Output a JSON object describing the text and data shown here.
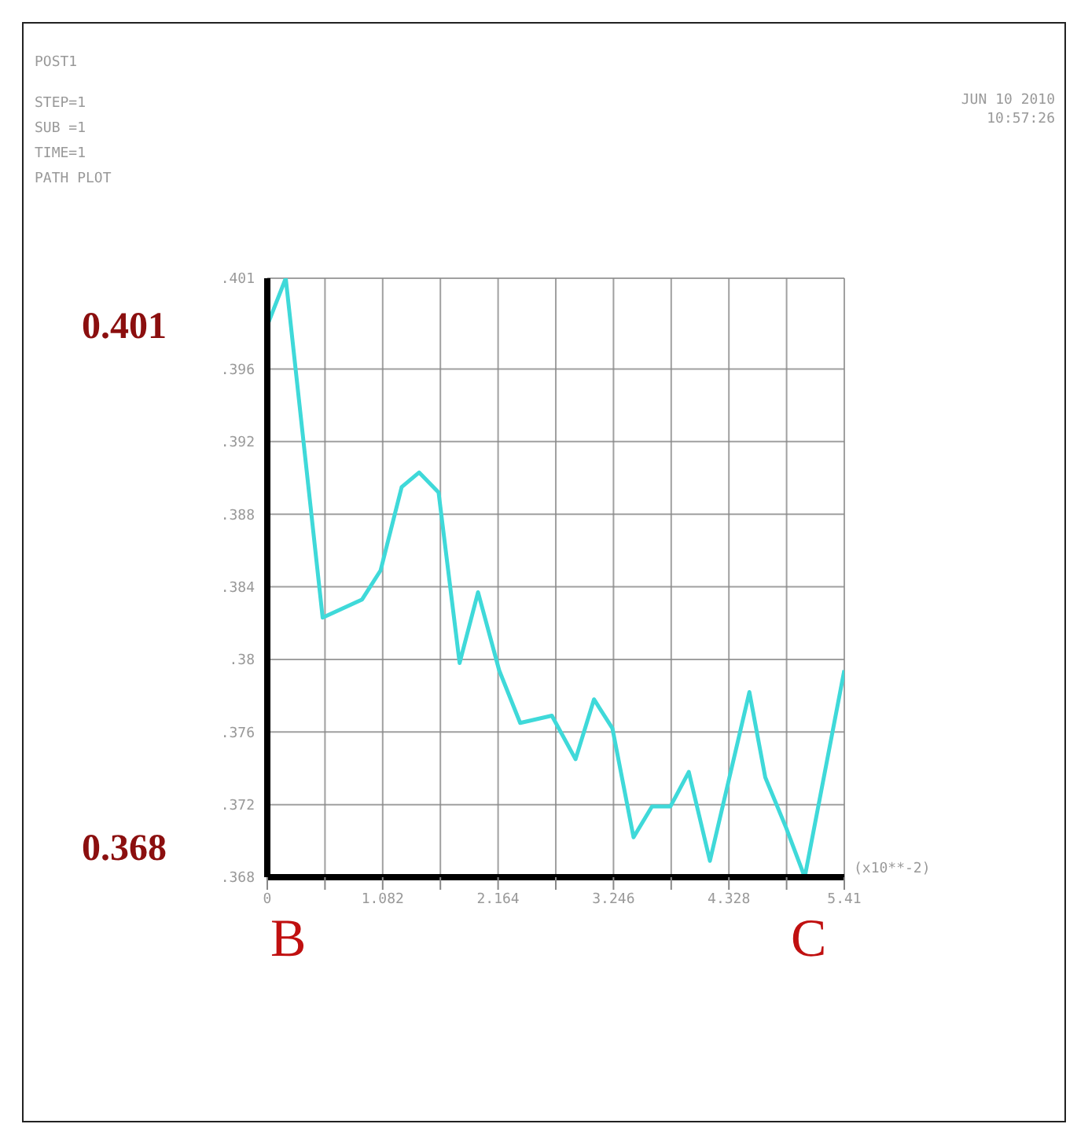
{
  "chart_data": {
    "type": "line",
    "xlabel": "(x10**-2)",
    "x": [
      0,
      0.173,
      0.519,
      0.889,
      1.062,
      1.26,
      1.423,
      1.606,
      1.803,
      1.976,
      2.174,
      2.371,
      2.668,
      2.89,
      3.063,
      3.236,
      3.434,
      3.607,
      3.78,
      3.952,
      4.15,
      4.52,
      4.669,
      4.866,
      5.039,
      5.41
    ],
    "series": [
      {
        "color": "#3fd9d9",
        "values": [
          0.3984,
          0.401,
          0.3823,
          0.3833,
          0.3849,
          0.3895,
          0.3903,
          0.3892,
          0.3798,
          0.3837,
          0.3794,
          0.3765,
          0.3769,
          0.3745,
          0.3778,
          0.3762,
          0.3702,
          0.3719,
          0.3719,
          0.3738,
          0.3689,
          0.3782,
          0.3735,
          0.3707,
          0.368,
          0.3794
        ]
      }
    ],
    "xlim": [
      0,
      5.41
    ],
    "xticks": [
      0,
      {
        "value": 0.541,
        "label": null
      },
      {
        "value": 1.082,
        "label": "1.082"
      },
      {
        "value": 1.623,
        "label": null
      },
      {
        "value": 2.164,
        "label": "2.164"
      },
      {
        "value": 2.705,
        "label": null
      },
      {
        "value": 3.246,
        "label": "3.246"
      },
      {
        "value": 3.787,
        "label": null
      },
      {
        "value": 4.328,
        "label": "4.328"
      },
      {
        "value": 4.869,
        "label": null
      },
      {
        "value": 5.41,
        "label": "5.41"
      }
    ],
    "ylim": [
      0.368,
      0.401
    ],
    "yticks": [
      {
        "value": 0.368,
        "label": ".368"
      },
      {
        "value": 0.372,
        "label": ".372"
      },
      {
        "value": 0.376,
        "label": ".376"
      },
      {
        "value": 0.38,
        "label": ".38"
      },
      {
        "value": 0.384,
        "label": ".384"
      },
      {
        "value": 0.388,
        "label": ".388"
      },
      {
        "value": 0.392,
        "label": ".392"
      },
      {
        "value": 0.396,
        "label": ".396"
      },
      {
        "value": 0.401,
        "label": ".401"
      }
    ],
    "grid": true,
    "marker": "none",
    "line_style": "solid",
    "annotations": [
      "POST1",
      "STEP=1",
      "SUB =1",
      "TIME=1",
      "PATH PLOT",
      "JUN 10 2010",
      "10:57:26",
      "0.401",
      "0.368",
      "B",
      "C"
    ]
  }
}
